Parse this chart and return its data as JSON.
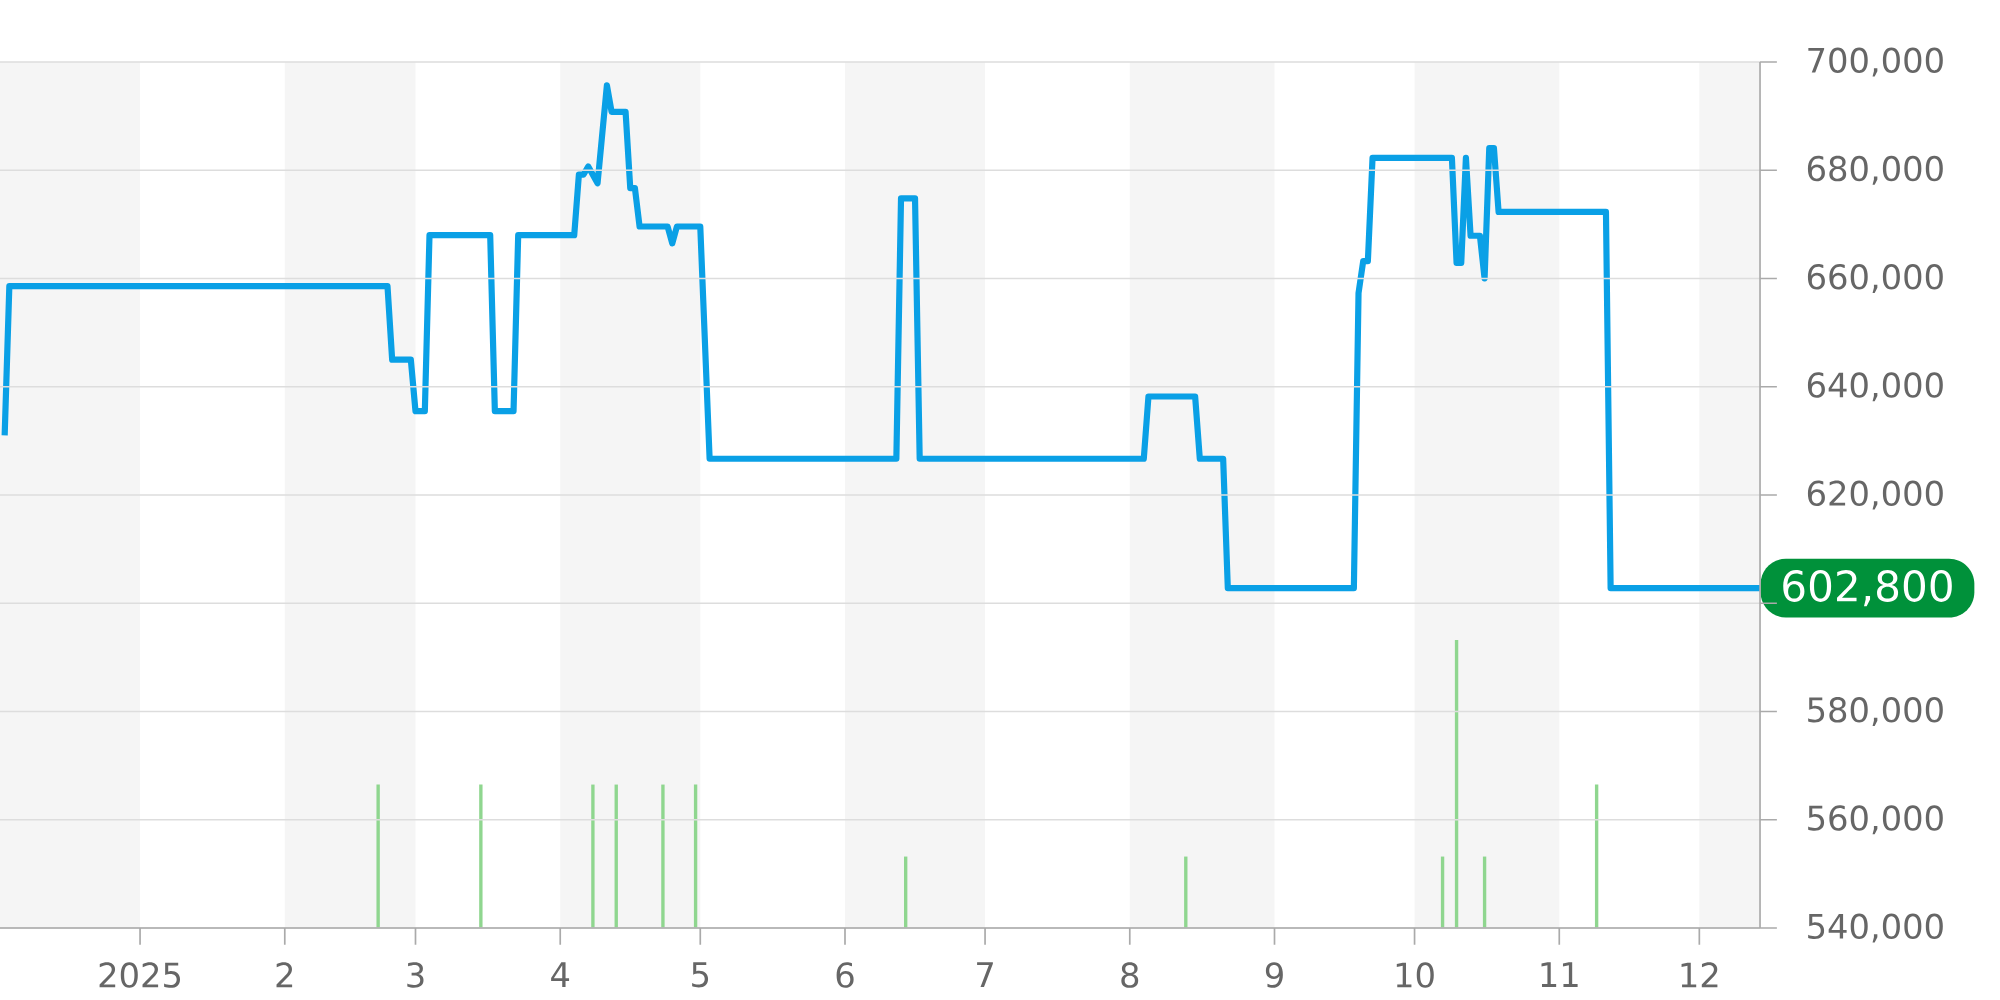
{
  "chart_data": {
    "type": "line",
    "xlim": [
      "2024-12-02",
      "2025-12-14"
    ],
    "xticks": [
      {
        "value": "2025-01-01",
        "label": "2025"
      },
      {
        "value": "2025-02-01",
        "label": "2"
      },
      {
        "value": "2025-03-01",
        "label": "3"
      },
      {
        "value": "2025-04-01",
        "label": "4"
      },
      {
        "value": "2025-05-01",
        "label": "5"
      },
      {
        "value": "2025-06-01",
        "label": "6"
      },
      {
        "value": "2025-07-01",
        "label": "7"
      },
      {
        "value": "2025-08-01",
        "label": "8"
      },
      {
        "value": "2025-09-01",
        "label": "9"
      },
      {
        "value": "2025-10-01",
        "label": "10"
      },
      {
        "value": "2025-11-01",
        "label": "11"
      },
      {
        "value": "2025-12-01",
        "label": "12"
      }
    ],
    "ylim": [
      540000,
      700000
    ],
    "yticks": [
      {
        "value": 540000,
        "label": "540,000"
      },
      {
        "value": 560000,
        "label": "560,000"
      },
      {
        "value": 580000,
        "label": "580,000"
      },
      {
        "value": 600000,
        "label": null
      },
      {
        "value": 620000,
        "label": "620,000"
      },
      {
        "value": 640000,
        "label": "640,000"
      },
      {
        "value": 660000,
        "label": "660,000"
      },
      {
        "value": 680000,
        "label": "680,000"
      },
      {
        "value": 700000,
        "label": "700,000"
      }
    ],
    "grid": "y",
    "bands": [
      {
        "axis": "x",
        "from": "2024-12-02",
        "to": "2025-01-01",
        "color": "#f5f5f5"
      },
      {
        "axis": "x",
        "from": "2025-02-01",
        "to": "2025-03-01",
        "color": "#f5f5f5"
      },
      {
        "axis": "x",
        "from": "2025-04-01",
        "to": "2025-05-01",
        "color": "#f5f5f5"
      },
      {
        "axis": "x",
        "from": "2025-06-01",
        "to": "2025-07-01",
        "color": "#f5f5f5"
      },
      {
        "axis": "x",
        "from": "2025-08-01",
        "to": "2025-09-01",
        "color": "#f5f5f5"
      },
      {
        "axis": "x",
        "from": "2025-10-01",
        "to": "2025-11-01",
        "color": "#f5f5f5"
      },
      {
        "axis": "x",
        "from": "2025-12-01",
        "to": "2025-12-14",
        "color": "#f5f5f5"
      }
    ],
    "series": [
      {
        "color": "#0aa0e6",
        "x": [
          "2024-12-03",
          "2024-12-04",
          "2025-02-23",
          "2025-02-24",
          "2025-02-28",
          "2025-03-01",
          "2025-03-03",
          "2025-03-04",
          "2025-03-17",
          "2025-03-18",
          "2025-03-22",
          "2025-03-23",
          "2025-04-04",
          "2025-04-05",
          "2025-04-06",
          "2025-04-07",
          "2025-04-09",
          "2025-04-11",
          "2025-04-12",
          "2025-04-15",
          "2025-04-16",
          "2025-04-17",
          "2025-04-18",
          "2025-04-24",
          "2025-04-25",
          "2025-04-26",
          "2025-05-01",
          "2025-05-03",
          "2025-06-12",
          "2025-06-13",
          "2025-06-16",
          "2025-06-17",
          "2025-08-04",
          "2025-08-05",
          "2025-08-15",
          "2025-08-16",
          "2025-08-21",
          "2025-08-22",
          "2025-09-18",
          "2025-09-19",
          "2025-09-20",
          "2025-09-21",
          "2025-09-22",
          "2025-10-09",
          "2025-10-10",
          "2025-10-11",
          "2025-10-12",
          "2025-10-13",
          "2025-10-15",
          "2025-10-16",
          "2025-10-17",
          "2025-10-18",
          "2025-10-19",
          "2025-11-11",
          "2025-11-12",
          "2025-12-14"
        ],
        "values": [
          631000,
          658600,
          658600,
          645000,
          645000,
          635500,
          635500,
          668000,
          668000,
          635500,
          635500,
          668000,
          668000,
          679200,
          679200,
          680700,
          677600,
          695700,
          690800,
          690800,
          676700,
          676700,
          669600,
          669600,
          666500,
          669600,
          669600,
          626700,
          626700,
          674800,
          674800,
          626700,
          626700,
          638200,
          638200,
          626700,
          626700,
          602800,
          602800,
          657300,
          663200,
          663200,
          682300,
          682300,
          662900,
          662900,
          682300,
          667900,
          667900,
          660000,
          684100,
          684100,
          672300,
          672300,
          602800,
          602800
        ]
      },
      {
        "type": "bar",
        "color": "#8fd68f",
        "x": [
          "2025-02-21",
          "2025-03-15",
          "2025-04-08",
          "2025-04-13",
          "2025-04-23",
          "2025-04-30",
          "2025-06-14",
          "2025-08-13",
          "2025-10-07",
          "2025-10-10",
          "2025-10-16",
          "2025-11-09"
        ],
        "values": [
          566500,
          566500,
          566500,
          566500,
          566500,
          566500,
          553200,
          553200,
          553200,
          593200,
          553200,
          566500
        ]
      }
    ],
    "annotations": [
      {
        "text": "602,800",
        "x": "2025-12-14",
        "y": 602800
      }
    ]
  }
}
